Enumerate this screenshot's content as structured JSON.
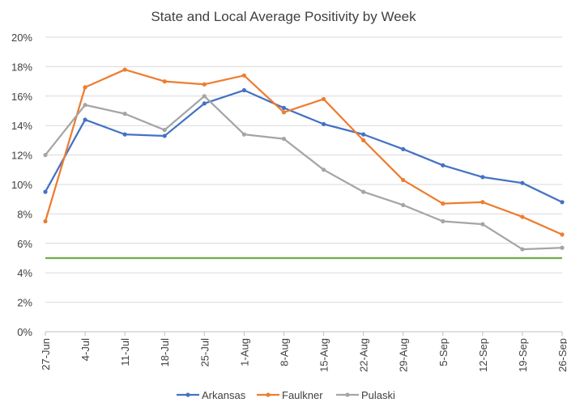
{
  "chart_data": {
    "type": "line",
    "title": "State and Local Average Positivity by Week",
    "categories": [
      "27-Jun",
      "4-Jul",
      "11-Jul",
      "18-Jul",
      "25-Jul",
      "1-Aug",
      "8-Aug",
      "15-Aug",
      "22-Aug",
      "29-Aug",
      "5-Sep",
      "12-Sep",
      "19-Sep",
      "26-Sep"
    ],
    "y_ticks": [
      "0%",
      "2%",
      "4%",
      "6%",
      "8%",
      "10%",
      "12%",
      "14%",
      "16%",
      "18%",
      "20%"
    ],
    "ylim": [
      0,
      20
    ],
    "y_unit": "%",
    "grid": true,
    "legend_position": "bottom",
    "series": [
      {
        "name": "Arkansas",
        "color": "#4472c4",
        "values": [
          9.5,
          14.4,
          13.4,
          13.3,
          15.5,
          16.4,
          15.2,
          14.1,
          13.4,
          12.4,
          11.3,
          10.5,
          10.1,
          8.8
        ]
      },
      {
        "name": "Faulkner",
        "color": "#ed7d31",
        "values": [
          7.5,
          16.6,
          17.8,
          17.0,
          16.8,
          17.4,
          14.9,
          15.8,
          13.0,
          10.3,
          8.7,
          8.8,
          7.8,
          6.6
        ]
      },
      {
        "name": "Pulaski",
        "color": "#a5a5a5",
        "values": [
          12.0,
          15.4,
          14.8,
          13.7,
          16.0,
          13.4,
          13.1,
          11.0,
          9.5,
          8.6,
          7.5,
          7.3,
          5.6,
          5.7
        ]
      }
    ],
    "reference_lines": [
      {
        "value": 5,
        "color": "#70ad47"
      }
    ]
  }
}
